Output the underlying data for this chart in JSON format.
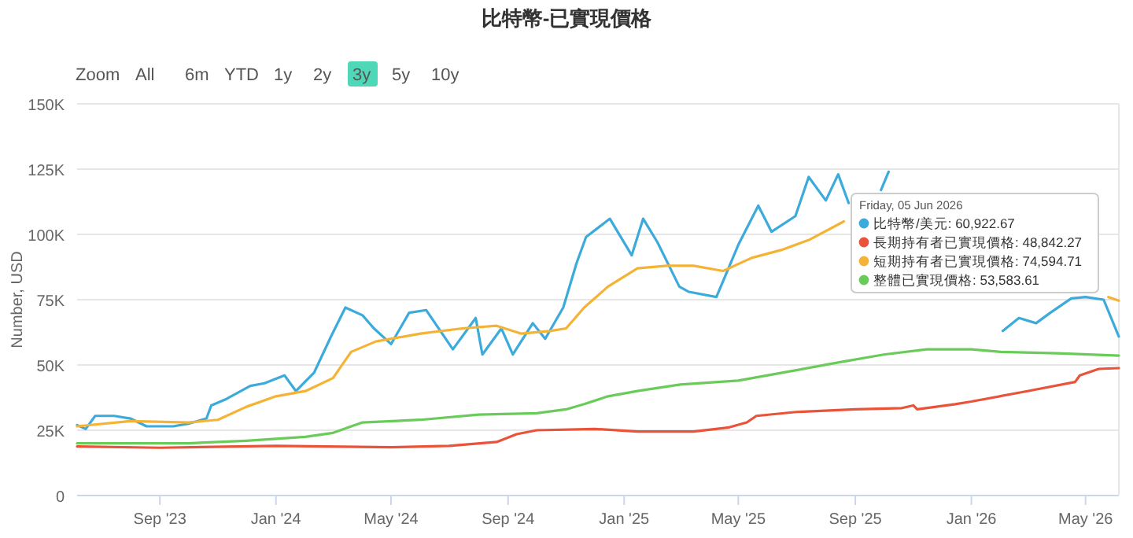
{
  "chart_data": {
    "type": "line",
    "title": "比特幣-已實現價格",
    "ylabel": "Number, USD",
    "xlim": [
      "2023-06-06",
      "2026-06-05"
    ],
    "xticks": [
      {
        "value": "2023-09-01",
        "label": "Sep '23"
      },
      {
        "value": "2024-01-01",
        "label": "Jan '24"
      },
      {
        "value": "2024-05-01",
        "label": "May '24"
      },
      {
        "value": "2024-09-01",
        "label": "Sep '24"
      },
      {
        "value": "2025-01-01",
        "label": "Jan '25"
      },
      {
        "value": "2025-05-01",
        "label": "May '25"
      },
      {
        "value": "2025-09-01",
        "label": "Sep '25"
      },
      {
        "value": "2026-01-01",
        "label": "Jan '26"
      },
      {
        "value": "2026-05-01",
        "label": "May '26"
      }
    ],
    "ylim": [
      0,
      150000
    ],
    "yticks": [
      0,
      {
        "value": 25000,
        "label": "25K"
      },
      {
        "value": 50000,
        "label": "50K"
      },
      {
        "value": 75000,
        "label": "75K"
      },
      {
        "value": 100000,
        "label": "100K"
      },
      {
        "value": 125000,
        "label": "125K"
      },
      {
        "value": 150000,
        "label": "150K"
      }
    ],
    "grid": "y",
    "marker": "none",
    "line_style": "solid",
    "series": [
      {
        "color": "#3cabdb",
        "x": [
          "2023-06-06",
          "2023-06-15",
          "2023-06-25",
          "2023-07-15",
          "2023-08-01",
          "2023-08-18",
          "2023-09-15",
          "2023-10-01",
          "2023-10-20",
          "2023-10-25",
          "2023-11-10",
          "2023-12-05",
          "2023-12-20",
          "2024-01-10",
          "2024-01-22",
          "2024-02-10",
          "2024-02-28",
          "2024-03-14",
          "2024-04-01",
          "2024-04-13",
          "2024-05-01",
          "2024-05-20",
          "2024-06-07",
          "2024-07-05",
          "2024-07-29",
          "2024-08-05",
          "2024-08-25",
          "2024-09-06",
          "2024-09-27",
          "2024-10-10",
          "2024-10-29",
          "2024-11-12",
          "2024-11-22",
          "2024-12-17",
          "2025-01-09",
          "2025-01-21",
          "2025-02-05",
          "2025-02-28",
          "2025-03-10",
          "2025-04-08",
          "2025-05-01",
          "2025-05-22",
          "2025-06-05",
          "2025-06-30",
          "2025-07-14",
          "2025-08-01",
          "2025-08-14",
          "2025-08-25",
          "2025-09-10",
          "2025-09-28",
          "2025-10-06",
          "2025-10-10",
          "2026-02-03",
          "2026-02-20",
          "2026-03-10",
          "2026-03-25",
          "2026-04-16",
          "2026-05-01",
          "2026-05-20",
          "2026-06-05"
        ],
        "values": [
          27000,
          25500,
          30500,
          30500,
          29500,
          26500,
          26500,
          27500,
          29500,
          34500,
          37000,
          42000,
          43000,
          46000,
          40000,
          47000,
          61000,
          72000,
          69000,
          64000,
          58000,
          70000,
          71000,
          56000,
          68000,
          54000,
          64000,
          54000,
          66000,
          60000,
          72000,
          89000,
          99000,
          106000,
          92000,
          106000,
          97000,
          80000,
          78000,
          76000,
          96000,
          111000,
          101000,
          107000,
          122000,
          113000,
          123000,
          112000,
          null,
          117000,
          124000,
          null,
          63000,
          68000,
          66000,
          70000,
          75500,
          76000,
          75000,
          60900
        ]
      },
      {
        "color": "#e8533a",
        "x": [
          "2023-06-06",
          "2023-09-01",
          "2024-01-01",
          "2024-05-01",
          "2024-07-01",
          "2024-08-20",
          "2024-09-10",
          "2024-10-01",
          "2024-12-01",
          "2025-01-15",
          "2025-03-15",
          "2025-04-20",
          "2025-05-10",
          "2025-05-20",
          "2025-07-01",
          "2025-09-01",
          "2025-10-20",
          "2025-11-01",
          "2025-11-05",
          "2025-12-15",
          "2026-01-01",
          "2026-03-01",
          "2026-04-20",
          "2026-04-25",
          "2026-05-15",
          "2026-06-05"
        ],
        "values": [
          18800,
          18300,
          19000,
          18500,
          19000,
          20500,
          23500,
          25000,
          25500,
          24500,
          24500,
          26000,
          28000,
          30500,
          32000,
          33000,
          33500,
          34500,
          33000,
          35000,
          36000,
          40000,
          43500,
          46000,
          48500,
          48800
        ]
      },
      {
        "color": "#f5b335",
        "x": [
          "2023-06-06",
          "2023-08-01",
          "2023-10-01",
          "2023-11-01",
          "2023-12-01",
          "2024-01-01",
          "2024-02-01",
          "2024-03-01",
          "2024-03-20",
          "2024-04-15",
          "2024-06-01",
          "2024-07-15",
          "2024-08-20",
          "2024-09-15",
          "2024-10-15",
          "2024-11-01",
          "2024-11-20",
          "2024-12-15",
          "2025-01-15",
          "2025-02-15",
          "2025-03-15",
          "2025-04-15",
          "2025-05-15",
          "2025-06-15",
          "2025-07-15",
          "2025-08-15",
          "2025-08-20",
          "2025-12-01",
          "2026-05-25",
          "2026-06-05"
        ],
        "values": [
          26500,
          28500,
          28000,
          29000,
          34000,
          38000,
          40000,
          45000,
          55000,
          59000,
          62000,
          64000,
          65000,
          62000,
          63000,
          64000,
          72000,
          80000,
          87000,
          88000,
          88000,
          86000,
          91000,
          94000,
          98000,
          104000,
          105000,
          null,
          76000,
          74600
        ]
      },
      {
        "color": "#6acb5a",
        "x": [
          "2023-06-06",
          "2023-10-01",
          "2023-12-01",
          "2024-02-01",
          "2024-03-01",
          "2024-04-01",
          "2024-06-01",
          "2024-08-01",
          "2024-10-01",
          "2024-11-01",
          "2024-11-20",
          "2024-12-15",
          "2025-01-15",
          "2025-03-01",
          "2025-05-01",
          "2025-07-01",
          "2025-08-15",
          "2025-10-01",
          "2025-11-15",
          "2026-01-01",
          "2026-02-01",
          "2026-04-01",
          "2026-06-05"
        ],
        "values": [
          20000,
          20000,
          21000,
          22500,
          24000,
          28000,
          29000,
          31000,
          31500,
          33000,
          35000,
          38000,
          40000,
          42500,
          44000,
          48000,
          51000,
          54000,
          56000,
          56000,
          55000,
          54500,
          53600
        ]
      }
    ],
    "annotations": [
      "Zoom All 6m YTD 1y 2y 3y 5y 10y",
      "Friday, 05 Jun 2026",
      "比特幣/美元: 60,922.67",
      "長期持有者已實現價格: 48,842.27",
      "短期持有者已實現價格: 74,594.71",
      "整體已實現價格: 53,583.61"
    ]
  }
}
